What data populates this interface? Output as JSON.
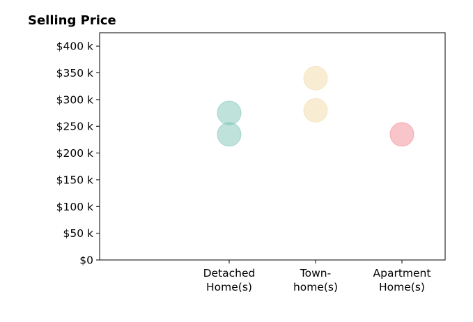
{
  "chart_data": {
    "type": "scatter",
    "title": "Selling Price",
    "xlabel": "",
    "ylabel": "",
    "categories": [
      [
        "Detached",
        "Home(s)"
      ],
      [
        "Town-",
        "home(s)"
      ],
      [
        "Apartment",
        "Home(s)"
      ]
    ],
    "ylim": [
      0,
      425000
    ],
    "yticks": [
      0,
      50000,
      100000,
      150000,
      200000,
      250000,
      300000,
      350000,
      400000
    ],
    "ytick_labels": [
      "$0",
      "$50 k",
      "$100 k",
      "$150 k",
      "$200 k",
      "$250 k",
      "$300 k",
      "$350 k",
      "$400 k"
    ],
    "grid": false,
    "points": [
      {
        "category": 0,
        "value": 275000,
        "color": "#7fc6b8"
      },
      {
        "category": 0,
        "value": 235000,
        "color": "#7fc6b8"
      },
      {
        "category": 1,
        "value": 340000,
        "color": "#f2dca8"
      },
      {
        "category": 1,
        "value": 280000,
        "color": "#f2dca8"
      },
      {
        "category": 2,
        "value": 235000,
        "color": "#f28b95"
      }
    ]
  }
}
